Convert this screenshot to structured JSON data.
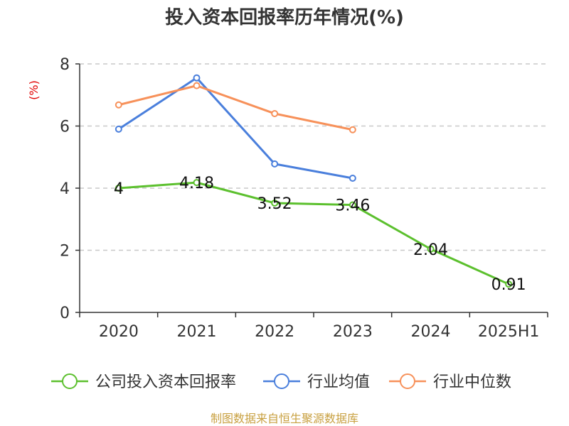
{
  "chart_data": {
    "type": "line",
    "title": "投入资本回报率历年情况(%)",
    "ylabel": "(%)",
    "categories": [
      "2020",
      "2021",
      "2022",
      "2023",
      "2024",
      "2025H1"
    ],
    "ylim": [
      0,
      8
    ],
    "yticks": [
      0,
      2,
      4,
      6,
      8
    ],
    "grid": true,
    "legend_position": "bottom",
    "series": [
      {
        "name": "公司投入资本回报率",
        "color": "#5cc02e",
        "values": [
          4,
          4.18,
          3.52,
          3.46,
          2.04,
          0.91
        ],
        "labels": [
          "4",
          "4.18",
          "3.52",
          "3.46",
          "2.04",
          "0.91"
        ]
      },
      {
        "name": "行业均值",
        "color": "#4a7fdc",
        "values": [
          5.9,
          7.55,
          4.78,
          4.32,
          null,
          null
        ]
      },
      {
        "name": "行业中位数",
        "color": "#f7915a",
        "values": [
          6.68,
          7.3,
          6.4,
          5.88,
          null,
          null
        ]
      }
    ]
  },
  "source": "制图数据来自恒生聚源数据库"
}
